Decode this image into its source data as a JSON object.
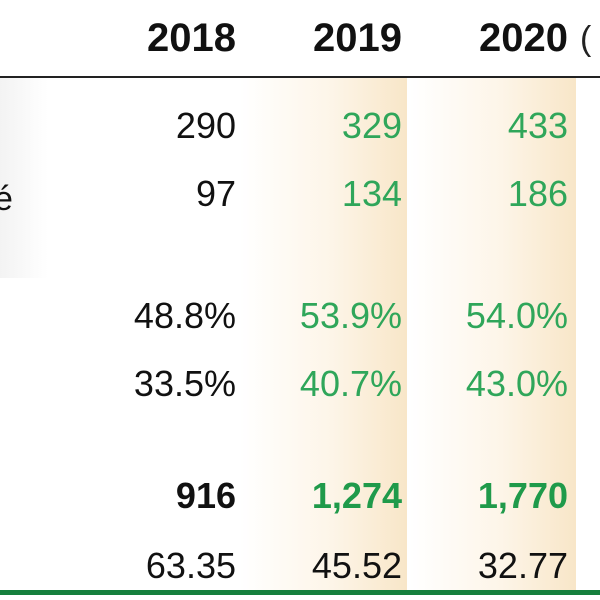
{
  "columns": [
    "2018",
    "2019",
    "2020"
  ],
  "cut_off_header": "(",
  "cut_off_left_glyph": "é",
  "rows": [
    {
      "2018": "290",
      "2019": "329",
      "2020": "433"
    },
    {
      "2018": "97",
      "2019": "134",
      "2020": "186"
    },
    {
      "2018": "48.8%",
      "2019": "53.9%",
      "2020": "54.0%"
    },
    {
      "2018": "33.5%",
      "2019": "40.7%",
      "2020": "43.0%"
    },
    {
      "2018": "916",
      "2019": "1,274",
      "2020": "1,770"
    },
    {
      "2018": "63.35",
      "2019": "45.52",
      "2020": "32.77"
    }
  ],
  "colors": {
    "projection_text": "#2fa65a",
    "bottom_rule": "#15803d",
    "column_shade": "#f8e6c8"
  }
}
